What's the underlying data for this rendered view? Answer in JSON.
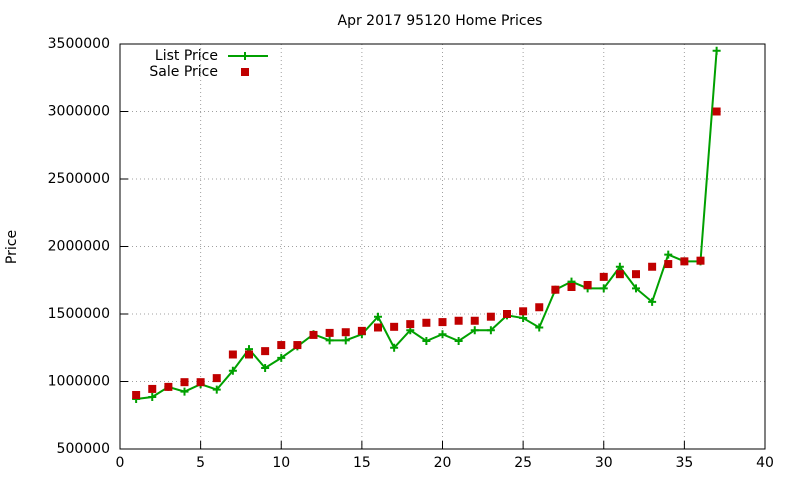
{
  "chart_data": {
    "type": "line",
    "title": "Apr 2017 95120 Home Prices",
    "y_label": "Price",
    "x": [
      1,
      2,
      3,
      4,
      5,
      6,
      7,
      8,
      9,
      10,
      11,
      12,
      13,
      14,
      15,
      16,
      17,
      18,
      19,
      20,
      21,
      22,
      23,
      24,
      25,
      26,
      27,
      28,
      29,
      30,
      31,
      32,
      33,
      34,
      35,
      36,
      37
    ],
    "series": [
      {
        "name": "List Price",
        "color": "#00a000",
        "marker": "plus",
        "line": true,
        "values": [
          870000,
          885000,
          960000,
          925000,
          980000,
          940000,
          1080000,
          1240000,
          1100000,
          1175000,
          1260000,
          1350000,
          1305000,
          1305000,
          1350000,
          1480000,
          1250000,
          1380000,
          1300000,
          1350000,
          1300000,
          1380000,
          1380000,
          1490000,
          1470000,
          1400000,
          1680000,
          1740000,
          1690000,
          1690000,
          1850000,
          1690000,
          1590000,
          1940000,
          1890000,
          1890000,
          3450000
        ]
      },
      {
        "name": "Sale Price",
        "color": "#c00000",
        "marker": "square",
        "line": false,
        "values": [
          900000,
          945000,
          960000,
          995000,
          995000,
          1025000,
          1200000,
          1200000,
          1225000,
          1270000,
          1270000,
          1345000,
          1360000,
          1365000,
          1375000,
          1400000,
          1405000,
          1425000,
          1435000,
          1440000,
          1450000,
          1450000,
          1480000,
          1500000,
          1520000,
          1550000,
          1680000,
          1700000,
          1715000,
          1775000,
          1795000,
          1795000,
          1850000,
          1870000,
          1890000,
          1895000,
          3000000
        ]
      }
    ],
    "xlim": [
      0,
      40
    ],
    "xticks": [
      0,
      5,
      10,
      15,
      20,
      25,
      30,
      35,
      40
    ],
    "ylim": [
      500000,
      3500000
    ],
    "yticks": [
      500000,
      1000000,
      1500000,
      2000000,
      2500000,
      3000000,
      3500000
    ],
    "grid": true,
    "legend": "top-left"
  }
}
